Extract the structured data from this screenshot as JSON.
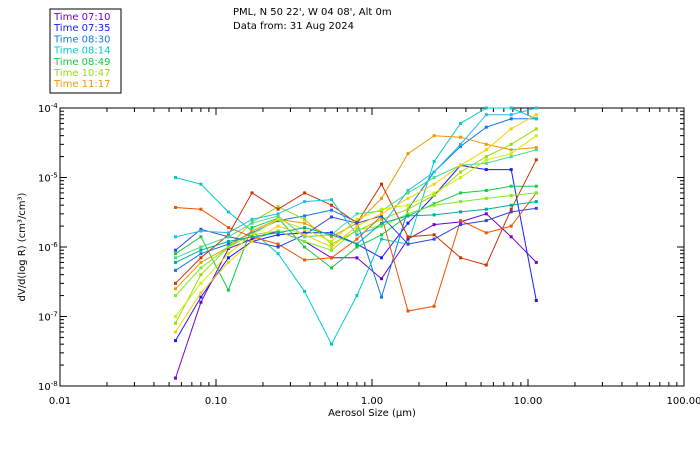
{
  "header": {
    "line1": "PML, N 50 22', W 04 08', Alt 0m",
    "line2": "Data from: 31 Aug 2024"
  },
  "chart_data": {
    "type": "line",
    "xscale": "log",
    "yscale": "log",
    "xlim": [
      0.01,
      100
    ],
    "ylim": [
      1e-08,
      0.0001
    ],
    "xlabel": "Aerosol Size (μm)",
    "ylabel": "dV/d(log R) (cm³/cm³)",
    "x_ticks": [
      {
        "value": 0.01,
        "label": "0.01"
      },
      {
        "value": 0.1,
        "label": "0.10"
      },
      {
        "value": 1,
        "label": "1.00"
      },
      {
        "value": 10,
        "label": "10.00"
      },
      {
        "value": 100,
        "label": "100.00"
      }
    ],
    "y_ticks": [
      {
        "value": 1e-08,
        "base": "10",
        "exp": "-8"
      },
      {
        "value": 1e-07,
        "base": "10",
        "exp": "-7"
      },
      {
        "value": 1e-06,
        "base": "10",
        "exp": "-6"
      },
      {
        "value": 1e-05,
        "base": "10",
        "exp": "-5"
      },
      {
        "value": 0.0001,
        "base": "10",
        "exp": "-4"
      }
    ],
    "legend_position": "top-left",
    "x": [
      0.055,
      0.08,
      0.12,
      0.17,
      0.25,
      0.37,
      0.55,
      0.8,
      1.15,
      1.7,
      2.5,
      3.7,
      5.4,
      7.8,
      11.3
    ],
    "series": [
      {
        "name": "Time 07:10",
        "color": "#7700cc",
        "values": [
          1.3e-08,
          1.6e-07,
          9.5e-07,
          1.3e-06,
          1.7e-06,
          1.2e-06,
          7e-07,
          7e-07,
          3.5e-07,
          1.3e-06,
          2.1e-06,
          2.3e-06,
          3e-06,
          1.4e-06,
          6e-07
        ]
      },
      {
        "name": "Time 07:35",
        "color": "#1a1aff",
        "values": [
          4.5e-08,
          1.9e-07,
          7e-07,
          1.2e-06,
          1.5e-06,
          1.6e-06,
          1.6e-06,
          1.1e-06,
          7e-07,
          2.2e-06,
          5.5e-06,
          1.5e-05,
          1.3e-05,
          1.3e-05,
          1.7e-07
        ]
      },
      {
        "name": "Time 08:30",
        "color": "#1177ee",
        "values": [
          4.6e-07,
          8e-07,
          1.1e-06,
          1.6e-06,
          2.4e-06,
          2.8e-06,
          3.4e-06,
          2.3e-06,
          1.9e-07,
          3.5e-06,
          1.2e-05,
          2.8e-05,
          5.3e-05,
          7e-05,
          7e-05
        ]
      },
      {
        "name": "Time 08:14",
        "color": "#00cccc",
        "values": [
          1e-05,
          8e-06,
          3.2e-06,
          1.7e-06,
          8e-07,
          2.3e-07,
          4e-08,
          2e-07,
          1.3e-06,
          1.1e-06,
          1.7e-05,
          6e-05,
          0.0001,
          0.0001,
          7e-05
        ]
      },
      {
        "name": "Time 08:49",
        "color": "#11cc44",
        "values": [
          8e-07,
          1.4e-06,
          2.4e-07,
          1.9e-06,
          2.6e-06,
          1e-06,
          5e-07,
          1e-06,
          1.5e-06,
          2.8e-06,
          4.2e-06,
          6e-06,
          6.5e-06,
          7.5e-06,
          7.5e-06
        ]
      },
      {
        "name": "Time 10:47",
        "color": "#99dd00",
        "values": [
          8e-08,
          4e-07,
          1e-06,
          2.3e-06,
          3.8e-06,
          2.5e-06,
          1.1e-06,
          1.7e-06,
          2.5e-06,
          3.5e-06,
          5.5e-06,
          1.2e-05,
          2e-05,
          3e-05,
          5e-05
        ]
      },
      {
        "name": "Time 11:17",
        "color": "#ee9900",
        "values": [
          2.5e-07,
          6e-07,
          1e-06,
          1.7e-06,
          2.5e-06,
          2.2e-06,
          1.4e-06,
          2.2e-06,
          5e-06,
          2.2e-05,
          4e-05,
          3.8e-05,
          3e-05,
          2.5e-05,
          2.7e-05
        ]
      },
      {
        "color": "#ee5500",
        "values": [
          3.7e-06,
          3.5e-06,
          1.9e-06,
          1.4e-06,
          1.1e-06,
          6.5e-07,
          7e-07,
          1.3e-06,
          2.8e-06,
          1.2e-07,
          1.4e-07,
          2.4e-06,
          1.6e-06,
          2e-06,
          6e-06
        ]
      },
      {
        "color": "#cc3300",
        "values": [
          3e-07,
          7e-07,
          1.5e-06,
          6e-06,
          3.5e-06,
          6e-06,
          4e-06,
          2.2e-06,
          8e-06,
          1.4e-06,
          1.5e-06,
          7e-07,
          5.5e-07,
          3.5e-06,
          1.8e-05
        ]
      },
      {
        "color": "#3344dd",
        "values": [
          9e-07,
          1.8e-06,
          1.4e-06,
          1.2e-06,
          1e-06,
          1.5e-06,
          2.7e-06,
          2.2e-06,
          2.8e-06,
          1.1e-06,
          1.3e-06,
          2.1e-06,
          2.4e-06,
          3.2e-06,
          3.6e-06
        ]
      },
      {
        "color": "#22bbee",
        "values": [
          1.4e-06,
          1.7e-06,
          1.6e-06,
          2.5e-06,
          3e-06,
          4.5e-06,
          4.8e-06,
          1.5e-06,
          2e-06,
          6.5e-06,
          1.2e-05,
          3e-05,
          8e-05,
          8e-05,
          0.0001
        ]
      },
      {
        "color": "#44dd88",
        "values": [
          7e-07,
          1e-06,
          1.4e-06,
          2.2e-06,
          2.8e-06,
          1.4e-06,
          1.5e-06,
          3e-06,
          3.3e-06,
          6e-06,
          1e-05,
          1.5e-05,
          1.6e-05,
          2e-05,
          2.5e-05
        ]
      },
      {
        "color": "#77ee22",
        "values": [
          2e-07,
          5e-07,
          1e-06,
          1.5e-06,
          1.7e-06,
          1.2e-06,
          9e-07,
          1.8e-06,
          2e-06,
          3e-06,
          4e-06,
          4.5e-06,
          5e-06,
          5.5e-06,
          6e-06
        ]
      },
      {
        "color": "#ccee00",
        "values": [
          1e-07,
          3e-07,
          8e-07,
          1.5e-06,
          2.5e-06,
          1.8e-06,
          1.2e-06,
          2.5e-06,
          3.5e-06,
          4e-06,
          6e-06,
          1e-05,
          1.8e-05,
          2.2e-05,
          4e-05
        ]
      },
      {
        "color": "#ffcc00",
        "values": [
          6e-08,
          2.2e-07,
          6e-07,
          1.2e-06,
          2e-06,
          1.5e-06,
          1e-06,
          2e-06,
          3e-06,
          5e-06,
          8e-06,
          1.5e-05,
          2.5e-05,
          5e-05,
          8e-05
        ]
      },
      {
        "color": "#00aa99",
        "values": [
          6e-07,
          9e-07,
          1.2e-06,
          1.4e-06,
          1.6e-06,
          1.9e-06,
          1.5e-06,
          1.1e-06,
          2.2e-06,
          2.8e-06,
          2.9e-06,
          3.2e-06,
          3.5e-06,
          4e-06,
          4.5e-06
        ]
      }
    ]
  }
}
